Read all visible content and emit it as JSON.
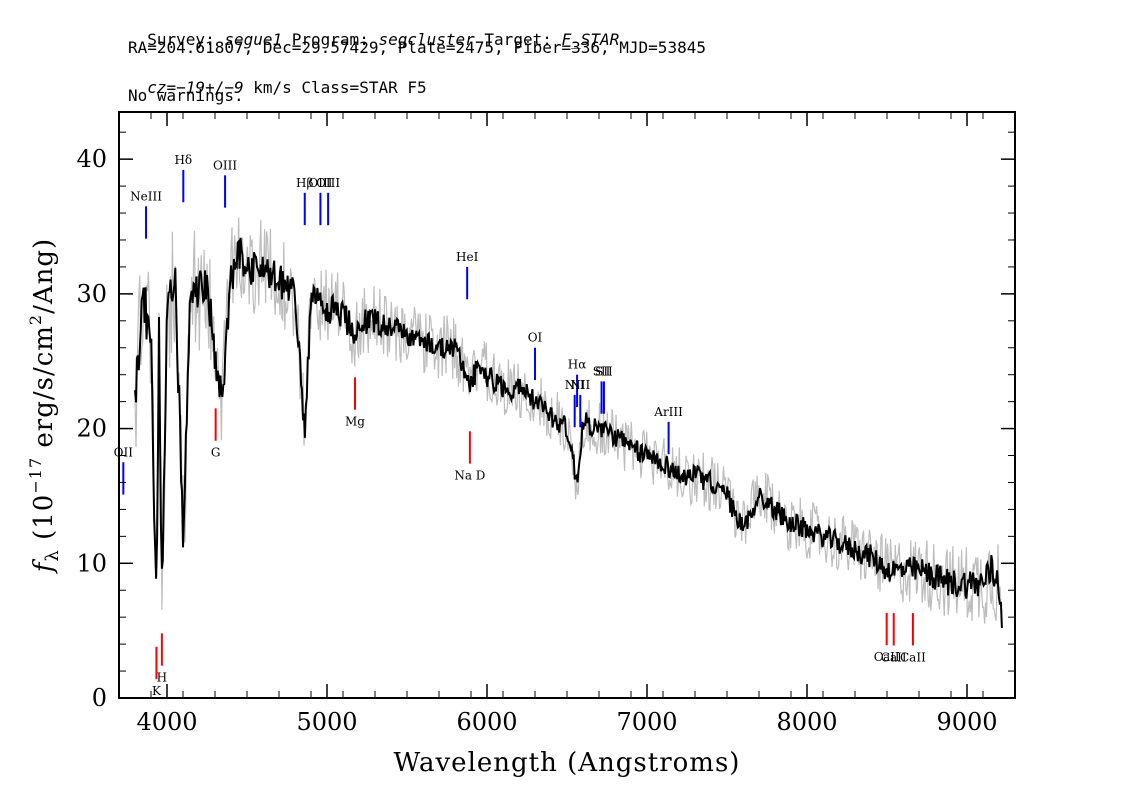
{
  "header": {
    "line1": {
      "survey_label": "Survey: ",
      "survey": "segue1",
      "program_label": " Program: ",
      "program": "segcluster",
      "target_label": " Target: ",
      "target": "F_STAR"
    },
    "line2": "RA=204.61807, Dec=29.57429, Plate=2475, Fiber=336, MJD=53845",
    "line3": {
      "cz": "cz=−19+/−9",
      "rest": " km/s Class=STAR F5"
    },
    "line4": "No warnings."
  },
  "chart_data": {
    "type": "line",
    "xlabel": "Wavelength (Angstroms)",
    "ylabel": "f_λ (10^-17 erg/s/cm^2/Ang)",
    "xlim": [
      3700,
      9300
    ],
    "ylim": [
      0,
      43.5
    ],
    "x_ticks": [
      4000,
      5000,
      6000,
      7000,
      8000,
      9000
    ],
    "y_ticks": [
      0,
      10,
      20,
      30,
      40
    ],
    "colors": {
      "spectrum": "#000000",
      "error_band": "#bdbdbd",
      "emission_lines": "#0000ff",
      "absorption_lines": "#ff0000"
    },
    "series": [
      {
        "name": "flux",
        "x": [
          3800,
          3850,
          3900,
          3934,
          3950,
          3968,
          4000,
          4050,
          4102,
          4150,
          4200,
          4250,
          4300,
          4340,
          4400,
          4450,
          4500,
          4600,
          4700,
          4800,
          4861,
          4900,
          5000,
          5100,
          5175,
          5200,
          5300,
          5400,
          5500,
          5600,
          5700,
          5800,
          5893,
          5950,
          6000,
          6100,
          6200,
          6300,
          6400,
          6500,
          6563,
          6600,
          6700,
          6800,
          6900,
          7000,
          7100,
          7200,
          7300,
          7400,
          7500,
          7600,
          7700,
          7800,
          7900,
          8000,
          8100,
          8200,
          8300,
          8400,
          8500,
          8600,
          8700,
          8800,
          8900,
          9000,
          9100,
          9150,
          9200,
          9220
        ],
        "y": [
          22,
          30,
          26,
          7,
          28,
          8,
          28,
          31,
          12,
          31,
          30,
          31,
          25,
          22,
          31,
          33,
          32,
          32,
          31,
          30,
          19.5,
          29.5,
          29,
          28.5,
          27,
          28,
          28,
          27.5,
          27,
          26.5,
          26,
          26,
          23,
          25,
          24,
          23,
          23,
          22,
          21,
          20,
          16,
          20.5,
          20,
          19.5,
          18.5,
          18,
          17.5,
          16.5,
          16.5,
          16,
          15,
          12.5,
          15,
          14,
          13,
          12.5,
          12,
          11.5,
          11,
          10.5,
          9.5,
          9.5,
          9.5,
          9,
          8.5,
          8.5,
          8.5,
          9.5,
          8.5,
          6
        ]
      },
      {
        "name": "error",
        "x": [
          3800,
          4000,
          4500,
          5000,
          5500,
          6000,
          6500,
          7000,
          7500,
          8000,
          8500,
          9000,
          9220
        ],
        "y": [
          4,
          4,
          3,
          2.5,
          2,
          2,
          1.8,
          1.8,
          1.8,
          1.8,
          2,
          2.5,
          3
        ]
      }
    ],
    "emission_lines": [
      {
        "label": "NeIII",
        "wavelength": 3869,
        "ytop": 36.5
      },
      {
        "label": "Hδ",
        "wavelength": 4102,
        "ytop": 39.2
      },
      {
        "label": "OIII",
        "wavelength": 4363,
        "ytop": 38.8
      },
      {
        "label": "Hβ",
        "wavelength": 4861,
        "ytop": 37.5
      },
      {
        "label": "OIII",
        "wavelength": 4959,
        "ytop": 37.5
      },
      {
        "label": "OIII",
        "wavelength": 5007,
        "ytop": 37.5
      },
      {
        "label": "HeI",
        "wavelength": 5876,
        "ytop": 32.0
      },
      {
        "label": "OI",
        "wavelength": 6300,
        "ytop": 26.0
      },
      {
        "label": "NII",
        "wavelength": 6548,
        "ytop": 22.5
      },
      {
        "label": "Hα",
        "wavelength": 6563,
        "ytop": 24.0
      },
      {
        "label": "NII",
        "wavelength": 6583,
        "ytop": 22.5
      },
      {
        "label": "SII",
        "wavelength": 6716,
        "ytop": 23.5
      },
      {
        "label": "SII",
        "wavelength": 6731,
        "ytop": 23.5
      },
      {
        "label": "ArIII",
        "wavelength": 7135,
        "ytop": 20.5
      },
      {
        "label": "OII",
        "wavelength": 3727,
        "ytop": 17.5
      }
    ],
    "absorption_lines": [
      {
        "label": "K",
        "wavelength": 3934
      },
      {
        "label": "H",
        "wavelength": 3968
      },
      {
        "label": "G",
        "wavelength": 4304
      },
      {
        "label": "Mg",
        "wavelength": 5175
      },
      {
        "label": "Na D",
        "wavelength": 5893
      },
      {
        "label": "CaII",
        "wavelength": 8498
      },
      {
        "label": "CaII",
        "wavelength": 8542
      },
      {
        "label": "CaII",
        "wavelength": 8662
      }
    ]
  }
}
